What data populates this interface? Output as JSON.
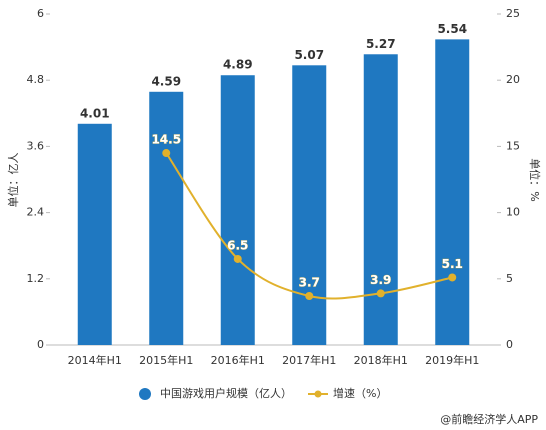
{
  "chart_data": {
    "type": "bar",
    "categories": [
      "2014年H1",
      "2015年H1",
      "2016年H1",
      "2017年H1",
      "2018年H1",
      "2019年H1"
    ],
    "series": [
      {
        "name": "中国游戏用户规模（亿人）",
        "type": "bar",
        "color": "#1f78c1",
        "values": [
          4.01,
          4.59,
          4.89,
          5.07,
          5.27,
          5.54
        ]
      },
      {
        "name": "增速（%）",
        "type": "line",
        "axis": "y2",
        "color": "#e1b12c",
        "values": [
          null,
          14.5,
          6.5,
          3.7,
          3.9,
          5.1
        ]
      }
    ],
    "ylabel": "单位：亿人",
    "y2label": "单位：%",
    "ylim": [
      0,
      6
    ],
    "yticks": [
      0,
      1.2,
      2.4,
      3.6,
      4.8,
      6
    ],
    "y2lim": [
      0,
      25
    ],
    "y2ticks": [
      0,
      5,
      10,
      15,
      20,
      25
    ],
    "source": "@前瞻经济学人APP"
  }
}
